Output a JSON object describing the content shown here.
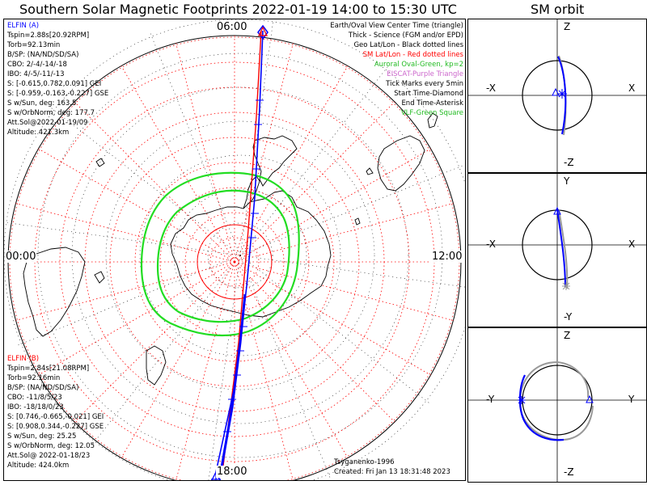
{
  "title": "Southern Solar Magnetic Footprints 2022-01-19 14:00 to 15:30 UTC",
  "orbit_title": "SM orbit",
  "hour_labels": {
    "top": "06:00",
    "left": "00:00",
    "right": "12:00",
    "bottom": "18:00"
  },
  "elfin_a": {
    "name": "ELFIN (A)",
    "lines": [
      "Tspin=2.88s[20.92RPM]",
      "Torb=92.13min",
      "B/SP: (NA/ND/SD/SA)",
      "CBO: 2/-4/-14/-18",
      "IBO: 4/-5/-11/-13",
      "S: [-0.615,0.782,0.091] GEI",
      "S: [-0.959,-0.163,-0.227] GSE",
      "S w/Sun, deg: 163.5",
      "S w/OrbNorm, deg: 177.7",
      "Att.Sol@2022-01-19/09",
      "Altitude: 421.3km"
    ]
  },
  "elfin_b": {
    "name": "ELFIN (B)",
    "lines": [
      "Tspin=2.84s[21.08RPM]",
      "Torb=92.16min",
      "B/SP: (NA/ND/SD/SA)",
      "CBO: -11/8/5/23",
      "IBO: -18/18/0/23",
      "S: [0.746,-0.665,-0.021] GEI",
      "S: [0.908,0.344,-0.227] GSE",
      "S w/Sun, deg: 25.25",
      "S w/OrbNorm, deg: 12.05",
      "Att.Sol@ 2022-01-18/23",
      "Altitude: 424.0km"
    ]
  },
  "legend": [
    {
      "text": "Earth/Oval View Center Time (triangle)",
      "color": "#000000"
    },
    {
      "text": "Thick - Science (FGM and/or EPD)",
      "color": "#000000"
    },
    {
      "text": "Geo Lat/Lon - Black dotted lines",
      "color": "#000000"
    },
    {
      "text": "SM Lat/Lon - Red dotted lines",
      "color": "#ff0000"
    },
    {
      "text": "Auroral Oval-Green, kp=2",
      "color": "#22bb22"
    },
    {
      "text": "EISCAT-Purple Triangle",
      "color": "#cc66cc"
    },
    {
      "text": "Tick Marks every 5min",
      "color": "#000000"
    },
    {
      "text": "Start Time-Diamond",
      "color": "#000000"
    },
    {
      "text": "End Time-Asterisk",
      "color": "#000000"
    },
    {
      "text": "VLF-Green Square",
      "color": "#22bb22"
    }
  ],
  "footer": {
    "author": "Tsyganenko-1996",
    "created": "Created: Fri Jan 13 18:31:48 2023"
  },
  "sm_panels": [
    {
      "up": "Z",
      "down": "-Z",
      "left": "-X",
      "right": "X"
    },
    {
      "up": "Y",
      "down": "-Y",
      "left": "-X",
      "right": "X"
    },
    {
      "up": "Z",
      "down": "-Z",
      "left": "-Y",
      "right": "Y"
    }
  ],
  "colors": {
    "elfin_a": "#0000ff",
    "elfin_b": "#ff0000",
    "oval": "#22dd22",
    "grid_sm": "#ff0000",
    "grid_geo": "#000000"
  }
}
